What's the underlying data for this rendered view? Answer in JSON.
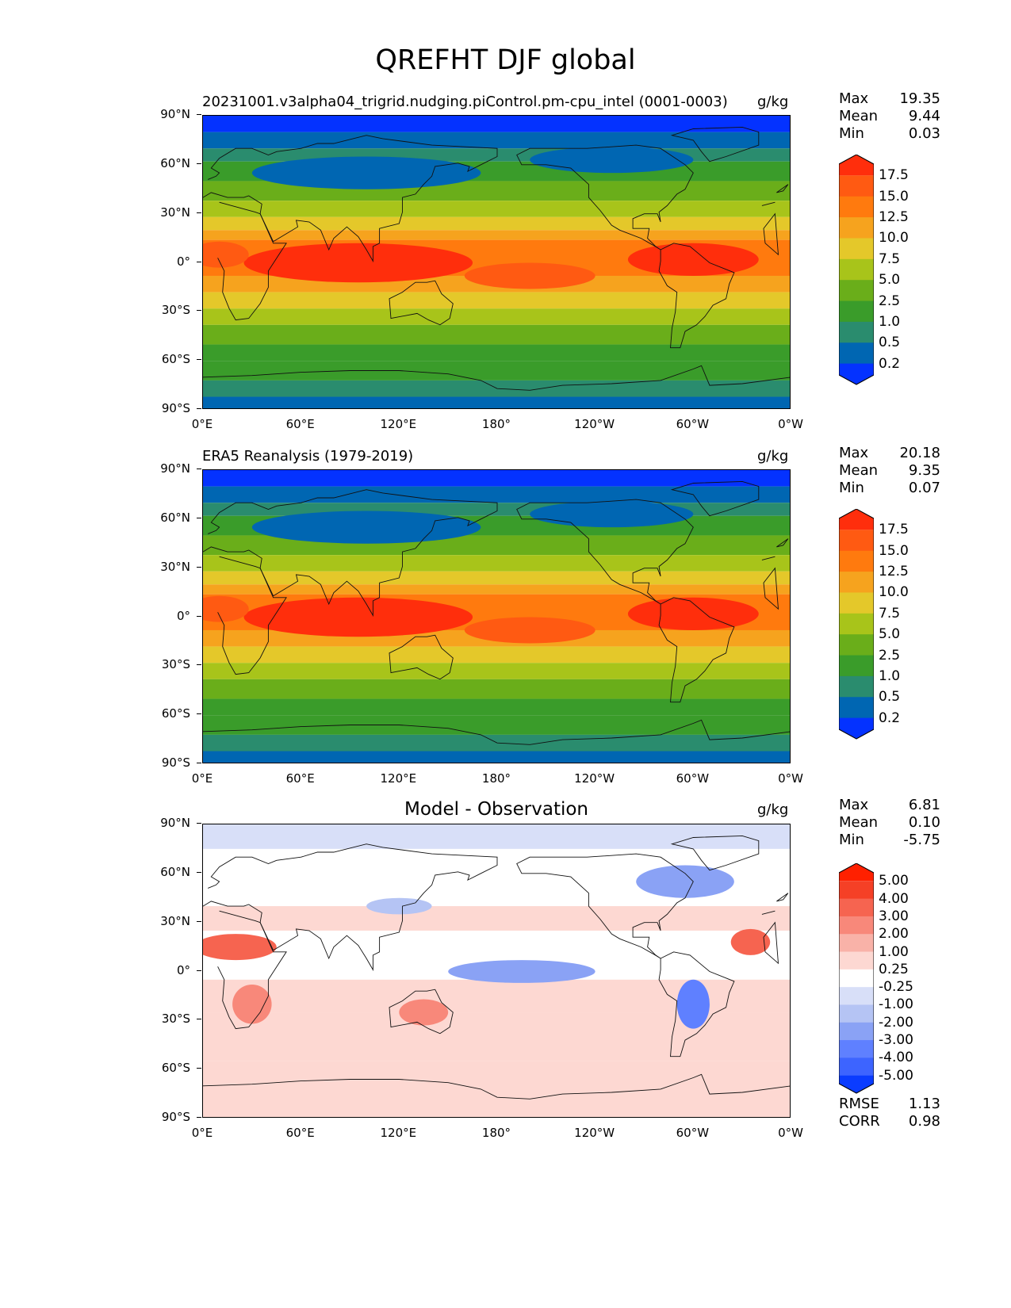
{
  "figure": {
    "title": "QREFHT DJF global",
    "lat_ticks": [
      "90°N",
      "60°N",
      "30°N",
      "0°",
      "30°S",
      "60°S",
      "90°S"
    ],
    "lon_ticks": [
      "0°E",
      "60°E",
      "120°E",
      "180°",
      "120°W",
      "60°W",
      "0°W"
    ]
  },
  "panels": [
    {
      "title": "20231001.v3alpha04_trigrid.nudging.piControl.pm-cpu_intel (0001-0003)",
      "units": "g/kg",
      "stats": [
        {
          "label": "Max",
          "value": "19.35"
        },
        {
          "label": "Mean",
          "value": "9.44"
        },
        {
          "label": "Min",
          "value": "0.03"
        }
      ],
      "colorbar": {
        "levels": [
          "0.2",
          "0.5",
          "1.0",
          "2.5",
          "5.0",
          "7.5",
          "10.0",
          "12.5",
          "15.0",
          "17.5"
        ],
        "colors": [
          "#0432FF",
          "#0066B2",
          "#2A8C6E",
          "#3A9C2A",
          "#6AAE1A",
          "#A8C41A",
          "#E4C82A",
          "#F6A31E",
          "#FF7A0E",
          "#FF5A12",
          "#FF2E0C"
        ]
      }
    },
    {
      "title": "ERA5 Reanalysis (1979-2019)",
      "units": "g/kg",
      "stats": [
        {
          "label": "Max",
          "value": "20.18"
        },
        {
          "label": "Mean",
          "value": "9.35"
        },
        {
          "label": "Min",
          "value": "0.07"
        }
      ],
      "colorbar": {
        "levels": [
          "0.2",
          "0.5",
          "1.0",
          "2.5",
          "5.0",
          "7.5",
          "10.0",
          "12.5",
          "15.0",
          "17.5"
        ],
        "colors": [
          "#0432FF",
          "#0066B2",
          "#2A8C6E",
          "#3A9C2A",
          "#6AAE1A",
          "#A8C41A",
          "#E4C82A",
          "#F6A31E",
          "#FF7A0E",
          "#FF5A12",
          "#FF2E0C"
        ]
      }
    },
    {
      "title": "Model - Observation",
      "units": "g/kg",
      "stats": [
        {
          "label": "Max",
          "value": "6.81"
        },
        {
          "label": "Mean",
          "value": "0.10"
        },
        {
          "label": "Min",
          "value": "-5.75"
        }
      ],
      "colorbar": {
        "levels": [
          "-5.00",
          "-4.00",
          "-3.00",
          "-2.00",
          "-1.00",
          "-0.25",
          "0.25",
          "1.00",
          "2.00",
          "3.00",
          "4.00",
          "5.00"
        ],
        "colors": [
          "#0A3CFF",
          "#3D64FF",
          "#5F80FF",
          "#8AA2F5",
          "#B5C4F4",
          "#D8DFF8",
          "#FFFFFF",
          "#FDD8D2",
          "#F9B2A8",
          "#F8887A",
          "#F66450",
          "#F54026",
          "#FF2000"
        ]
      },
      "metrics": [
        {
          "label": "RMSE",
          "value": "1.13"
        },
        {
          "label": "CORR",
          "value": "0.98"
        }
      ]
    }
  ]
}
